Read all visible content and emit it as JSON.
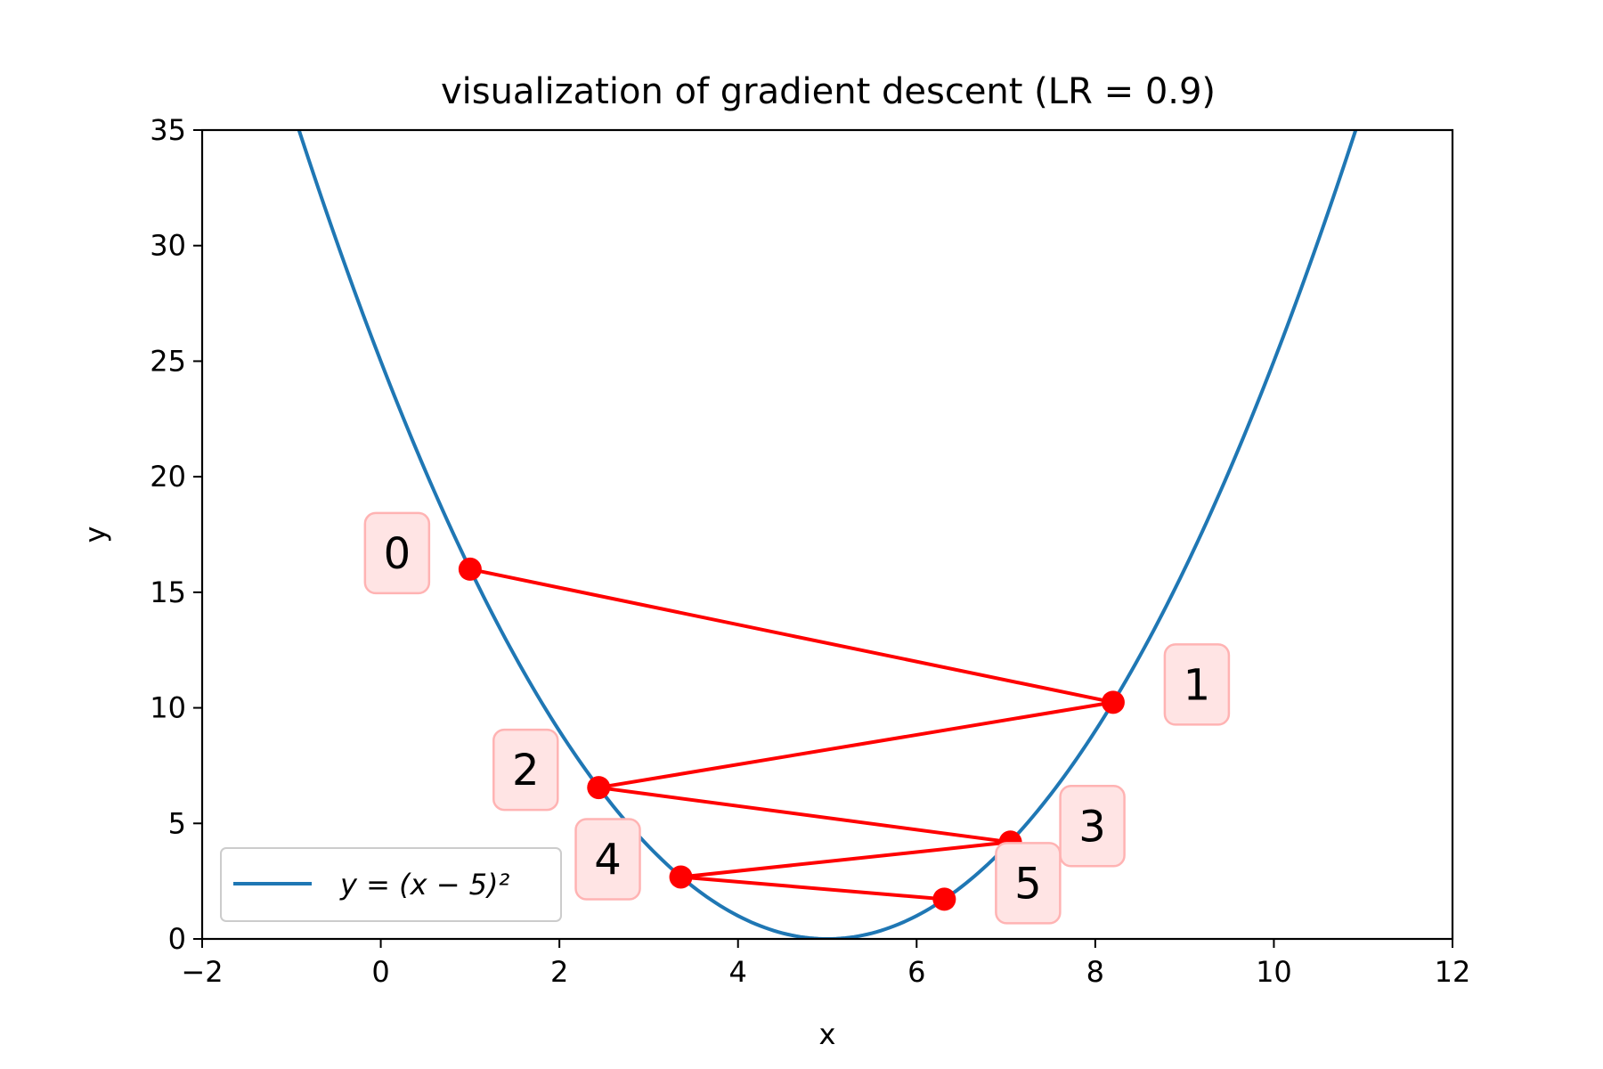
{
  "chart_data": {
    "type": "line",
    "title": "visualization of gradient descent (LR = 0.9)",
    "xlabel": "x",
    "ylabel": "y",
    "xlim": [
      -2,
      12
    ],
    "ylim": [
      0,
      35
    ],
    "xticks": [
      -2,
      0,
      2,
      4,
      6,
      8,
      10,
      12
    ],
    "xtick_labels": [
      "−2",
      "0",
      "2",
      "4",
      "6",
      "8",
      "10",
      "12"
    ],
    "yticks": [
      0,
      5,
      10,
      15,
      20,
      25,
      30,
      35
    ],
    "ytick_labels": [
      "0",
      "5",
      "10",
      "15",
      "20",
      "25",
      "30",
      "35"
    ],
    "grid": false,
    "legend_position": "lower-left",
    "curve": {
      "name": "y = (x − 5)²",
      "function": "(x-5)^2",
      "x_range": [
        -1,
        11
      ],
      "color": "#1f77b4"
    },
    "steps": {
      "color": "#ff0000",
      "label_box_color": "#ffe4e4",
      "label_border_color": "#ffb3b3",
      "points": [
        {
          "label": "0",
          "x": 1.0,
          "y": 16.0
        },
        {
          "label": "1",
          "x": 8.2,
          "y": 10.24
        },
        {
          "label": "2",
          "x": 2.44,
          "y": 6.55
        },
        {
          "label": "3",
          "x": 7.05,
          "y": 4.19
        },
        {
          "label": "4",
          "x": 3.36,
          "y": 2.68
        },
        {
          "label": "5",
          "x": 6.31,
          "y": 1.72
        }
      ]
    }
  }
}
